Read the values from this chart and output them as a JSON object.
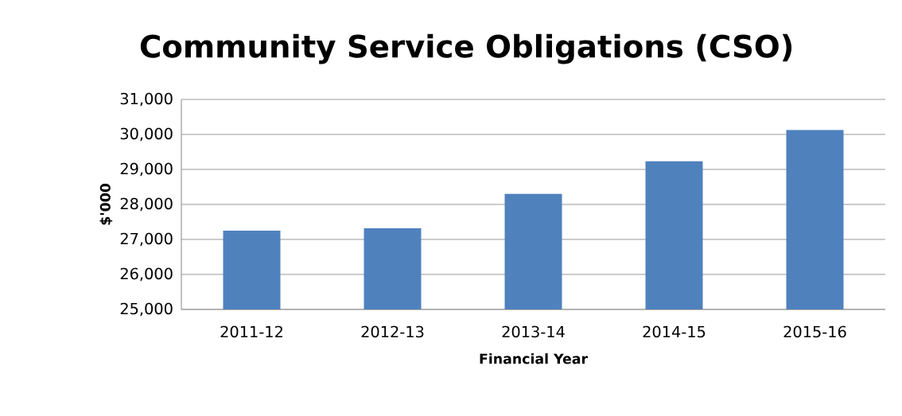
{
  "chart_data": {
    "type": "bar",
    "title": "Community Service Obligations (CSO)",
    "xlabel": "Financial Year",
    "ylabel": "$'000",
    "categories": [
      "2011-12",
      "2012-13",
      "2013-14",
      "2014-15",
      "2015-16"
    ],
    "values": [
      27250,
      27320,
      28300,
      29230,
      30130
    ],
    "color": "#4f81bd",
    "ylim": [
      25000,
      31000
    ],
    "yticks": [
      {
        "value": 25000,
        "label": "25,000"
      },
      {
        "value": 26000,
        "label": "26,000"
      },
      {
        "value": 27000,
        "label": "27,000"
      },
      {
        "value": 28000,
        "label": "28,000"
      },
      {
        "value": 29000,
        "label": "29,000"
      },
      {
        "value": 30000,
        "label": "30,000"
      },
      {
        "value": 31000,
        "label": "31,000"
      }
    ],
    "grid": "y"
  }
}
